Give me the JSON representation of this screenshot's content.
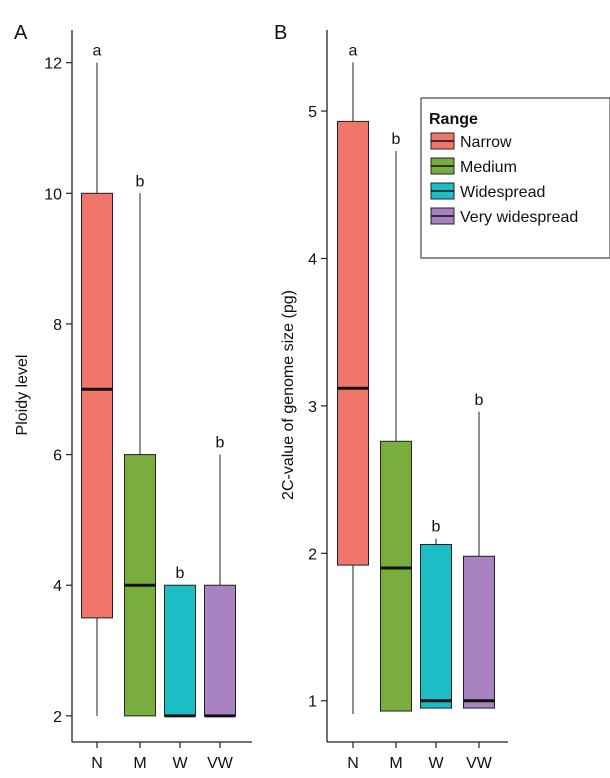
{
  "figure": {
    "panel_labels": [
      "A",
      "B"
    ],
    "legend": {
      "title": "Range",
      "items": [
        {
          "label": "Narrow",
          "color": "#f0756b"
        },
        {
          "label": "Medium",
          "color": "#79ad3d"
        },
        {
          "label": "Widespread",
          "color": "#1bbec4"
        },
        {
          "label": "Very widespread",
          "color": "#a882c1"
        }
      ]
    }
  },
  "chart_data": [
    {
      "type": "box",
      "panel": "A",
      "xlabel": "",
      "ylabel": "Ploidy level",
      "categories": [
        "N",
        "M",
        "W",
        "VW"
      ],
      "ylim": [
        1.6,
        12.5
      ],
      "yticks": [
        2,
        4,
        6,
        8,
        10,
        12
      ],
      "grid": false,
      "boxes": [
        {
          "category": "N",
          "whisker_low": 2,
          "q1": 3.5,
          "median": 7,
          "q3": 10,
          "whisker_high": 12,
          "letter": "a",
          "color": "#f0756b"
        },
        {
          "category": "M",
          "whisker_low": 2,
          "q1": 2,
          "median": 4,
          "q3": 6,
          "whisker_high": 10,
          "letter": "b",
          "color": "#79ad3d"
        },
        {
          "category": "W",
          "whisker_low": 2,
          "q1": 2,
          "median": 2,
          "q3": 4,
          "whisker_high": 4,
          "letter": "b",
          "color": "#1bbec4"
        },
        {
          "category": "VW",
          "whisker_low": 2,
          "q1": 2,
          "median": 2,
          "q3": 4,
          "whisker_high": 6,
          "letter": "b",
          "color": "#a882c1"
        }
      ]
    },
    {
      "type": "box",
      "panel": "B",
      "xlabel": "",
      "ylabel": "2C-value of genome size (pg)",
      "categories": [
        "N",
        "M",
        "W",
        "VW"
      ],
      "ylim": [
        0.72,
        5.55
      ],
      "yticks": [
        1,
        2,
        3,
        4,
        5
      ],
      "grid": false,
      "boxes": [
        {
          "category": "N",
          "whisker_low": 0.91,
          "q1": 1.92,
          "median": 3.12,
          "q3": 4.93,
          "whisker_high": 5.33,
          "letter": "a",
          "color": "#f0756b"
        },
        {
          "category": "M",
          "whisker_low": 0.93,
          "q1": 0.93,
          "median": 1.9,
          "q3": 2.76,
          "whisker_high": 4.73,
          "letter": "b",
          "color": "#79ad3d"
        },
        {
          "category": "W",
          "whisker_low": 0.95,
          "q1": 0.95,
          "median": 1.0,
          "q3": 2.06,
          "whisker_high": 2.1,
          "letter": "b",
          "color": "#1bbec4"
        },
        {
          "category": "VW",
          "whisker_low": 0.95,
          "q1": 0.95,
          "median": 1.0,
          "q3": 1.98,
          "whisker_high": 2.96,
          "letter": "b",
          "color": "#a882c1"
        }
      ]
    }
  ]
}
